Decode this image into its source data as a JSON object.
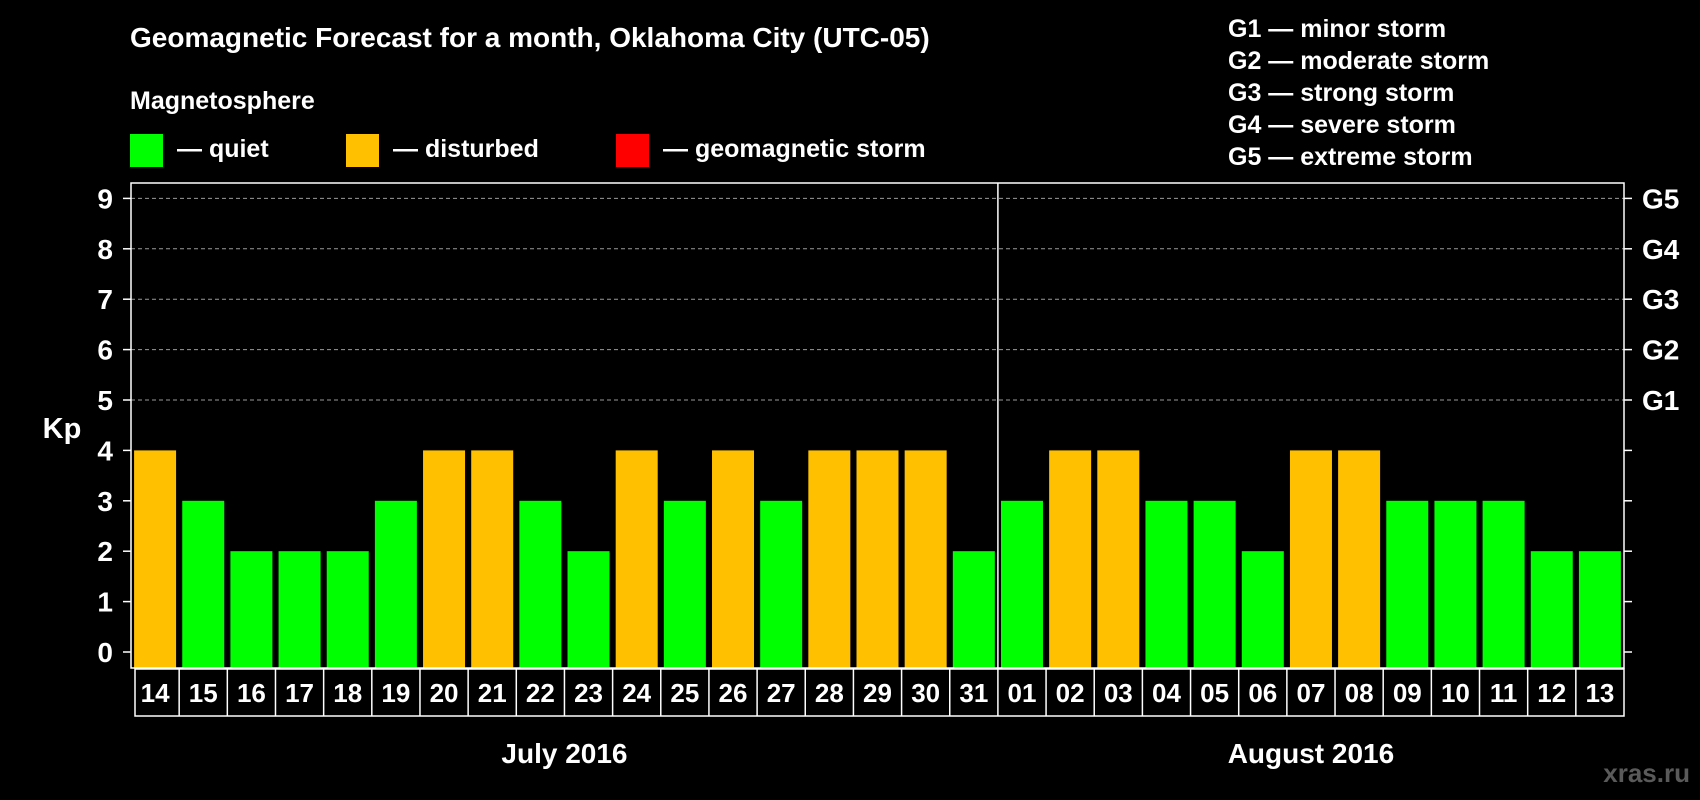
{
  "title": "Geomagnetic Forecast for a month, Oklahoma City (UTC-05)",
  "legend": {
    "heading": "Magnetosphere",
    "items": [
      {
        "key": "quiet",
        "label": "— quiet",
        "color": "#00ff00"
      },
      {
        "key": "disturbed",
        "label": "— disturbed",
        "color": "#ffc000"
      },
      {
        "key": "storm",
        "label": "— geomagnetic storm",
        "color": "#ff0000"
      }
    ]
  },
  "g_scale": [
    "G1 — minor storm",
    "G2 — moderate storm",
    "G3 — strong storm",
    "G4 — severe storm",
    "G5 — extreme storm"
  ],
  "watermark": "xras.ru",
  "chart_data": {
    "type": "bar",
    "ylabel": "Kp",
    "ylim": [
      0,
      9
    ],
    "yticks": [
      "0",
      "1",
      "2",
      "3",
      "4",
      "5",
      "6",
      "7",
      "8",
      "9"
    ],
    "right_axis_labels": [
      {
        "kp": 5,
        "label": "G1"
      },
      {
        "kp": 6,
        "label": "G2"
      },
      {
        "kp": 7,
        "label": "G3"
      },
      {
        "kp": 8,
        "label": "G4"
      },
      {
        "kp": 9,
        "label": "G5"
      }
    ],
    "grid": "dashed horizontal at Kp 5-9",
    "categories": [
      "14",
      "15",
      "16",
      "17",
      "18",
      "19",
      "20",
      "21",
      "22",
      "23",
      "24",
      "25",
      "26",
      "27",
      "28",
      "29",
      "30",
      "31",
      "01",
      "02",
      "03",
      "04",
      "05",
      "06",
      "07",
      "08",
      "09",
      "10",
      "11",
      "12",
      "13"
    ],
    "values": [
      4,
      3,
      2,
      2,
      2,
      3,
      4,
      4,
      3,
      2,
      4,
      3,
      4,
      3,
      4,
      4,
      4,
      2,
      3,
      4,
      4,
      3,
      3,
      2,
      4,
      4,
      3,
      3,
      3,
      2,
      2
    ],
    "month_groups": [
      {
        "label": "July 2016",
        "count": 18
      },
      {
        "label": "August 2016",
        "count": 13
      }
    ],
    "color_rule": "Kp <= 3 quiet (green), Kp = 4 disturbed (orange), Kp >= 5 storm (red)"
  }
}
